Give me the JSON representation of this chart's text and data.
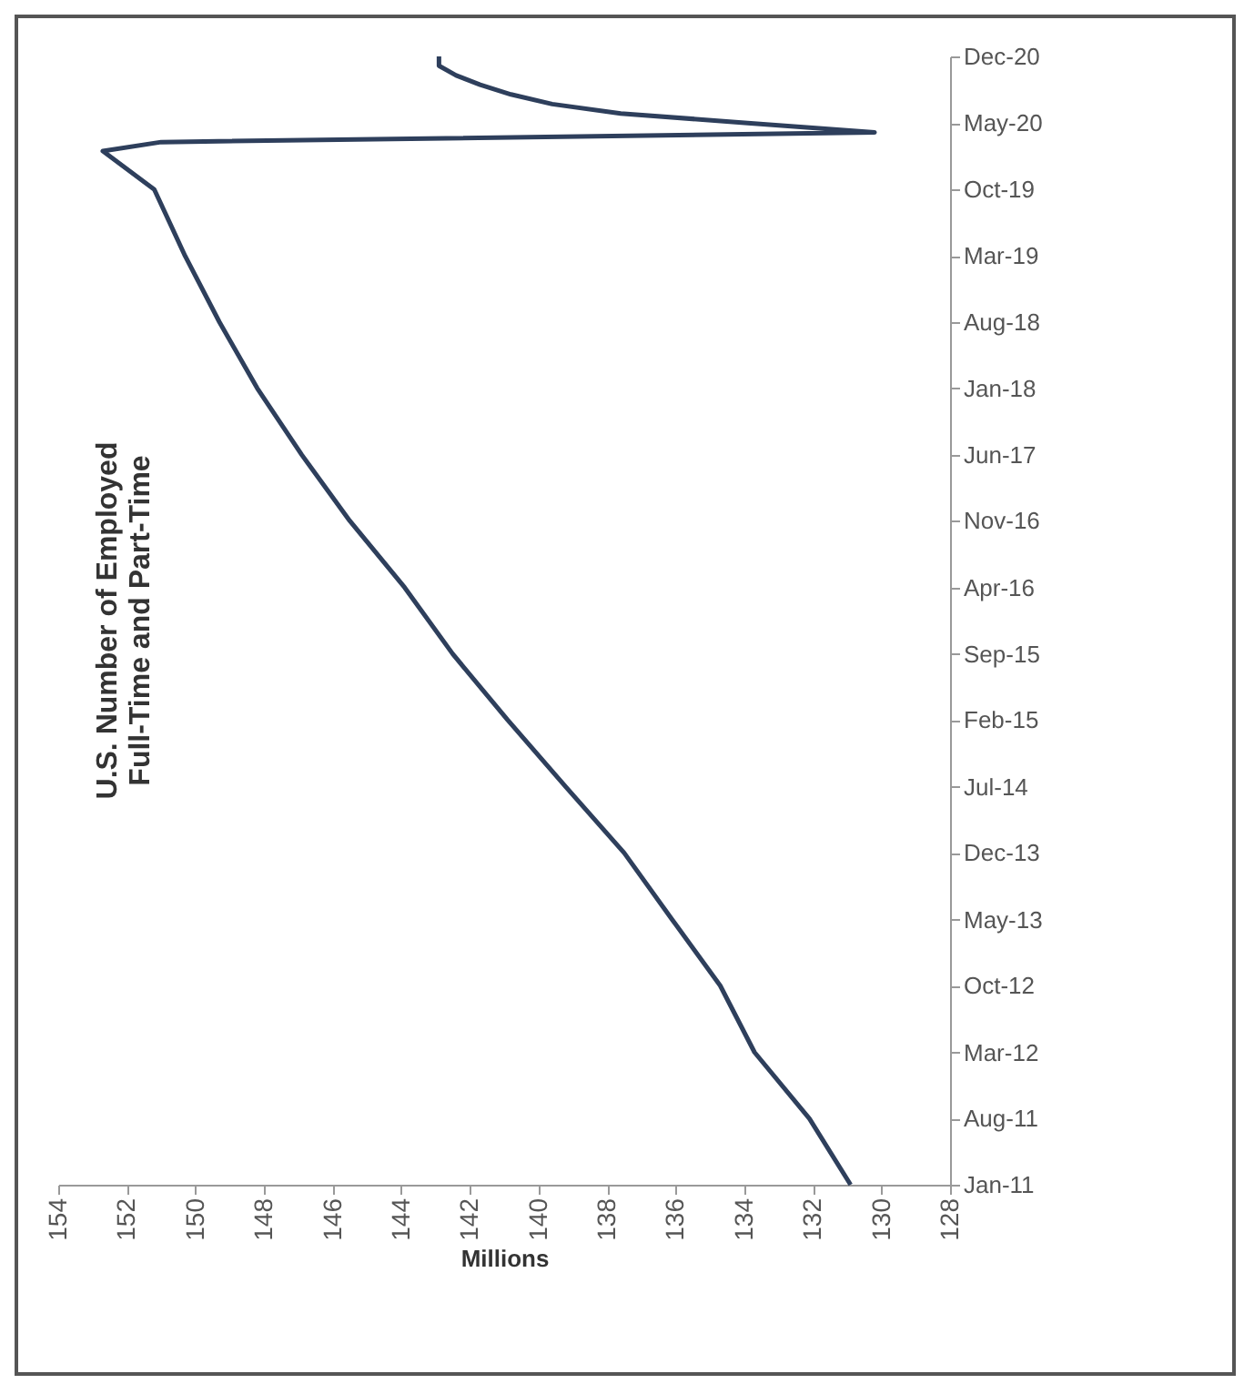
{
  "chart_data": {
    "type": "line",
    "orientation": "horizontal",
    "title": [
      "U.S. Number of Employed",
      "Full-Time and Part-Time"
    ],
    "xlabel": "Millions",
    "x": [
      "2011-01",
      "2011-08",
      "2012-03",
      "2012-10",
      "2013-05",
      "2013-12",
      "2014-07",
      "2015-02",
      "2015-09",
      "2016-04",
      "2016-11",
      "2017-06",
      "2018-01",
      "2018-08",
      "2019-03",
      "2019-10",
      "2020-02",
      "2020-03",
      "2020-04",
      "2020-05",
      "2020-06",
      "2020-07",
      "2020-08",
      "2020-09",
      "2020-10",
      "2020-11",
      "2020-12"
    ],
    "series": [
      {
        "color": "#2e3f5c",
        "values": [
          130.9,
          132.1,
          133.7,
          134.7,
          136.1,
          137.5,
          139.2,
          140.9,
          142.5,
          143.9,
          145.5,
          146.9,
          148.2,
          149.3,
          150.3,
          151.2,
          152.7,
          151.0,
          130.2,
          133.9,
          137.6,
          139.6,
          140.8,
          141.7,
          142.4,
          142.9,
          142.9
        ]
      }
    ],
    "ylim": [
      "2011-01",
      "2020-12"
    ],
    "yticks": [
      {
        "value": "2011-01",
        "label": "Jan-11"
      },
      {
        "value": "2011-08",
        "label": "Aug-11"
      },
      {
        "value": "2012-03",
        "label": "Mar-12"
      },
      {
        "value": "2012-10",
        "label": "Oct-12"
      },
      {
        "value": "2013-05",
        "label": "May-13"
      },
      {
        "value": "2013-12",
        "label": "Dec-13"
      },
      {
        "value": "2014-07",
        "label": "Jul-14"
      },
      {
        "value": "2015-02",
        "label": "Feb-15"
      },
      {
        "value": "2015-09",
        "label": "Sep-15"
      },
      {
        "value": "2016-04",
        "label": "Apr-16"
      },
      {
        "value": "2016-11",
        "label": "Nov-16"
      },
      {
        "value": "2017-06",
        "label": "Jun-17"
      },
      {
        "value": "2018-01",
        "label": "Jan-18"
      },
      {
        "value": "2018-08",
        "label": "Aug-18"
      },
      {
        "value": "2019-03",
        "label": "Mar-19"
      },
      {
        "value": "2019-10",
        "label": "Oct-19"
      },
      {
        "value": "2020-05",
        "label": "May-20"
      },
      {
        "value": "2020-12",
        "label": "Dec-20"
      }
    ],
    "xlim": [
      154,
      128
    ],
    "xticks": [
      154,
      152,
      150,
      148,
      146,
      144,
      142,
      140,
      138,
      136,
      134,
      132,
      130,
      128
    ],
    "grid": false,
    "marker": "none",
    "line_style": "solid"
  }
}
